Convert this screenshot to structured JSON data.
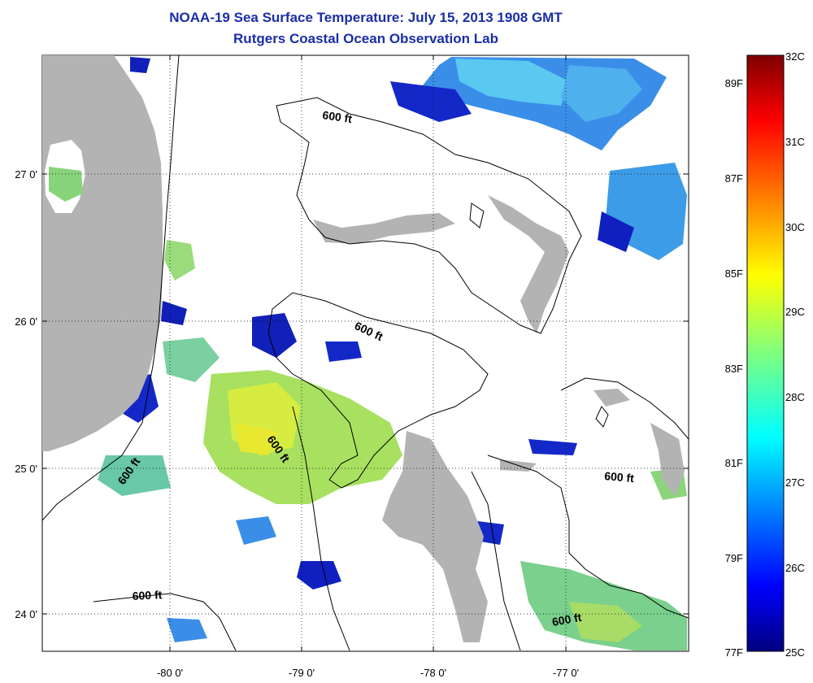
{
  "header": {
    "title": "NOAA-19 Sea Surface Temperature:  July 15, 2013 1908 GMT",
    "subtitle": "Rutgers Coastal Ocean Observation Lab"
  },
  "map": {
    "x_ticks": [
      "-80 0'",
      "-79 0'",
      "-78 0'",
      "-77 0'"
    ],
    "y_ticks": [
      "27 0'",
      "26 0'",
      "25 0'",
      "24 0'"
    ],
    "contour_label": "600 ft",
    "land_color": "#b3b3b3",
    "water_color": "#ffffff"
  },
  "colorbar": {
    "celsius_labels": [
      "32C",
      "31C",
      "30C",
      "29C",
      "28C",
      "27C",
      "26C",
      "25C"
    ],
    "fahrenheit_labels": [
      "89F",
      "87F",
      "85F",
      "83F",
      "81F",
      "79F",
      "77F"
    ],
    "colormap": "jet"
  }
}
